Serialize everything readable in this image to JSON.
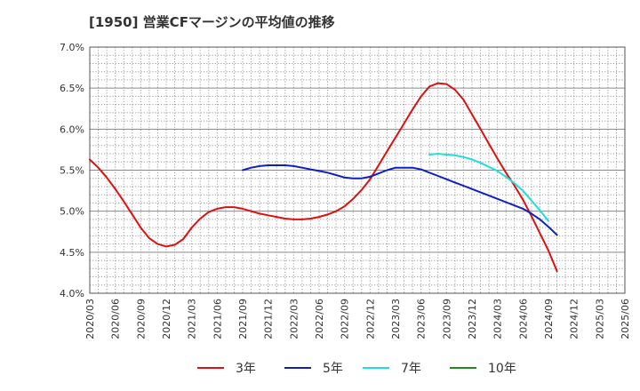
{
  "chart_data": {
    "type": "line",
    "title": "[1950]  営業CFマージンの平均値の推移",
    "xlabel": "",
    "ylabel": "",
    "ylim": [
      4.0,
      7.0
    ],
    "yticks": [
      "4.0%",
      "4.5%",
      "5.0%",
      "5.5%",
      "6.0%",
      "6.5%",
      "7.0%"
    ],
    "categories": [
      "2020/03",
      "2020/06",
      "2020/09",
      "2020/12",
      "2021/03",
      "2021/06",
      "2021/09",
      "2021/12",
      "2022/03",
      "2022/06",
      "2022/09",
      "2022/12",
      "2023/03",
      "2023/06",
      "2023/09",
      "2023/12",
      "2024/03",
      "2024/06",
      "2024/09",
      "2024/12",
      "2025/03",
      "2025/06"
    ],
    "grid": true,
    "legend_position": "bottom",
    "series": [
      {
        "name": "3年",
        "color": "#dd1111",
        "points": [
          [
            "2020/03",
            5.63
          ],
          [
            "2020/04",
            5.53
          ],
          [
            "2020/05",
            5.41
          ],
          [
            "2020/06",
            5.27
          ],
          [
            "2020/07",
            5.12
          ],
          [
            "2020/08",
            4.96
          ],
          [
            "2020/09",
            4.8
          ],
          [
            "2020/10",
            4.67
          ],
          [
            "2020/11",
            4.6
          ],
          [
            "2020/12",
            4.57
          ],
          [
            "2021/01",
            4.59
          ],
          [
            "2021/02",
            4.66
          ],
          [
            "2021/03",
            4.8
          ],
          [
            "2021/04",
            4.91
          ],
          [
            "2021/05",
            4.99
          ],
          [
            "2021/06",
            5.03
          ],
          [
            "2021/07",
            5.05
          ],
          [
            "2021/08",
            5.05
          ],
          [
            "2021/09",
            5.03
          ],
          [
            "2021/10",
            5.0
          ],
          [
            "2021/11",
            4.97
          ],
          [
            "2021/12",
            4.95
          ],
          [
            "2022/01",
            4.93
          ],
          [
            "2022/02",
            4.91
          ],
          [
            "2022/03",
            4.9
          ],
          [
            "2022/04",
            4.9
          ],
          [
            "2022/05",
            4.91
          ],
          [
            "2022/06",
            4.93
          ],
          [
            "2022/07",
            4.96
          ],
          [
            "2022/08",
            5.0
          ],
          [
            "2022/09",
            5.06
          ],
          [
            "2022/10",
            5.15
          ],
          [
            "2022/11",
            5.26
          ],
          [
            "2022/12",
            5.39
          ],
          [
            "2023/01",
            5.56
          ],
          [
            "2023/02",
            5.73
          ],
          [
            "2023/03",
            5.9
          ],
          [
            "2023/04",
            6.07
          ],
          [
            "2023/05",
            6.24
          ],
          [
            "2023/06",
            6.4
          ],
          [
            "2023/07",
            6.52
          ],
          [
            "2023/08",
            6.56
          ],
          [
            "2023/09",
            6.55
          ],
          [
            "2023/10",
            6.48
          ],
          [
            "2023/11",
            6.36
          ],
          [
            "2023/12",
            6.18
          ],
          [
            "2024/01",
            6.0
          ],
          [
            "2024/02",
            5.82
          ],
          [
            "2024/03",
            5.64
          ],
          [
            "2024/04",
            5.47
          ],
          [
            "2024/05",
            5.31
          ],
          [
            "2024/06",
            5.14
          ],
          [
            "2024/07",
            4.94
          ],
          [
            "2024/08",
            4.73
          ],
          [
            "2024/09",
            4.52
          ],
          [
            "2024/10",
            4.27
          ]
        ]
      },
      {
        "name": "5年",
        "color": "#1020c0",
        "points": [
          [
            "2021/09",
            5.5
          ],
          [
            "2021/10",
            5.53
          ],
          [
            "2021/11",
            5.55
          ],
          [
            "2021/12",
            5.56
          ],
          [
            "2022/01",
            5.56
          ],
          [
            "2022/02",
            5.56
          ],
          [
            "2022/03",
            5.55
          ],
          [
            "2022/04",
            5.53
          ],
          [
            "2022/05",
            5.51
          ],
          [
            "2022/06",
            5.49
          ],
          [
            "2022/07",
            5.47
          ],
          [
            "2022/08",
            5.44
          ],
          [
            "2022/09",
            5.41
          ],
          [
            "2022/10",
            5.4
          ],
          [
            "2022/11",
            5.4
          ],
          [
            "2022/12",
            5.42
          ],
          [
            "2023/01",
            5.46
          ],
          [
            "2023/02",
            5.5
          ],
          [
            "2023/03",
            5.53
          ],
          [
            "2023/04",
            5.53
          ],
          [
            "2023/05",
            5.53
          ],
          [
            "2023/06",
            5.51
          ],
          [
            "2023/07",
            5.47
          ],
          [
            "2023/08",
            5.43
          ],
          [
            "2023/09",
            5.39
          ],
          [
            "2023/10",
            5.35
          ],
          [
            "2023/11",
            5.31
          ],
          [
            "2023/12",
            5.27
          ],
          [
            "2024/01",
            5.23
          ],
          [
            "2024/02",
            5.19
          ],
          [
            "2024/03",
            5.15
          ],
          [
            "2024/04",
            5.11
          ],
          [
            "2024/05",
            5.07
          ],
          [
            "2024/06",
            5.03
          ],
          [
            "2024/07",
            4.97
          ],
          [
            "2024/08",
            4.9
          ],
          [
            "2024/09",
            4.81
          ],
          [
            "2024/10",
            4.71
          ]
        ]
      },
      {
        "name": "7年",
        "color": "#22dddd",
        "points": [
          [
            "2023/07",
            5.69
          ],
          [
            "2023/08",
            5.7
          ],
          [
            "2023/09",
            5.69
          ],
          [
            "2023/10",
            5.68
          ],
          [
            "2023/11",
            5.66
          ],
          [
            "2023/12",
            5.63
          ],
          [
            "2024/01",
            5.59
          ],
          [
            "2024/02",
            5.54
          ],
          [
            "2024/03",
            5.49
          ],
          [
            "2024/04",
            5.42
          ],
          [
            "2024/05",
            5.34
          ],
          [
            "2024/06",
            5.25
          ],
          [
            "2024/07",
            5.13
          ],
          [
            "2024/08",
            5.01
          ],
          [
            "2024/09",
            4.88
          ]
        ]
      },
      {
        "name": "10年",
        "color": "#228822",
        "points": []
      }
    ]
  }
}
